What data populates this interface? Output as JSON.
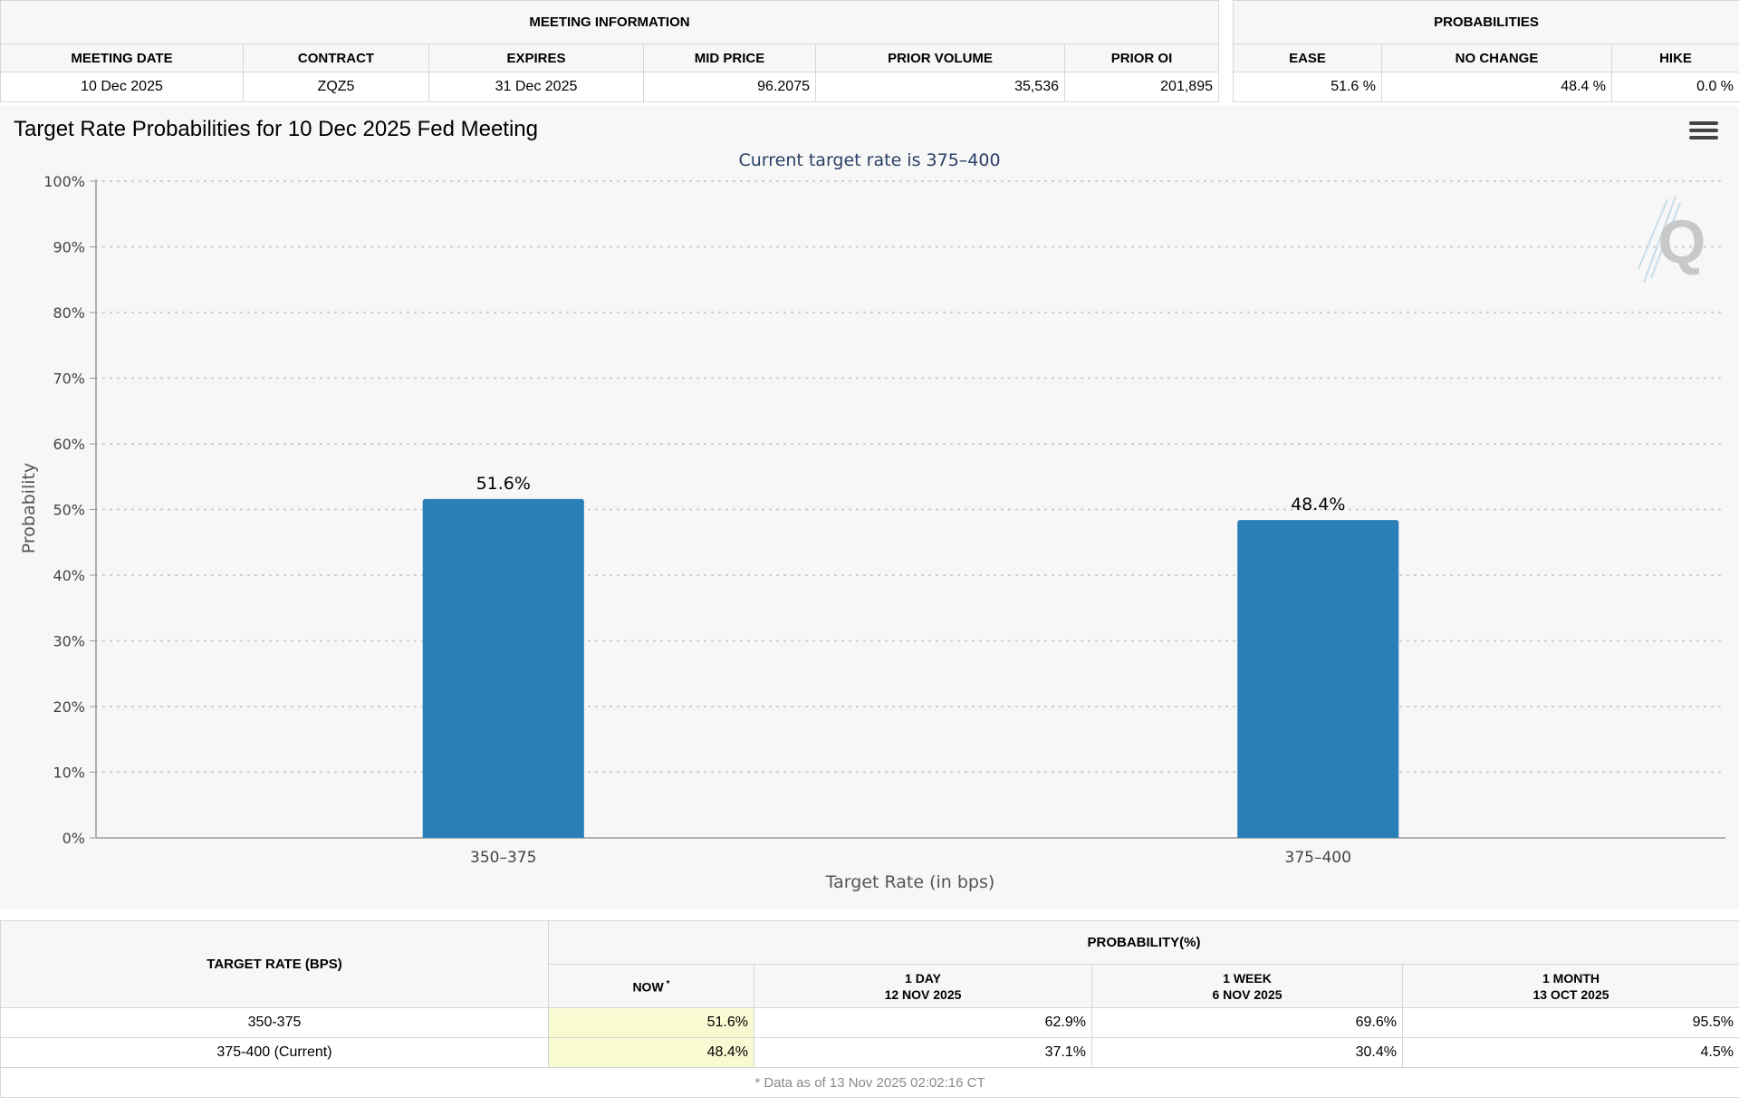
{
  "meeting_info": {
    "title": "MEETING INFORMATION",
    "headers": [
      "MEETING DATE",
      "CONTRACT",
      "EXPIRES",
      "MID PRICE",
      "PRIOR VOLUME",
      "PRIOR OI"
    ],
    "row": {
      "meeting_date": "10 Dec 2025",
      "contract": "ZQZ5",
      "expires": "31 Dec 2025",
      "mid_price": "96.2075",
      "prior_volume": "35,536",
      "prior_oi": "201,895"
    }
  },
  "probabilities": {
    "title": "PROBABILITIES",
    "headers": [
      "EASE",
      "NO CHANGE",
      "HIKE"
    ],
    "row": {
      "ease": "51.6 %",
      "no_change": "48.4 %",
      "hike": "0.0 %"
    }
  },
  "chart": {
    "title": "Target Rate Probabilities for 10 Dec 2025 Fed Meeting",
    "menu_icon": "hamburger-menu-icon",
    "watermark": "Q"
  },
  "chart_data": {
    "type": "bar",
    "title": "Target Rate Probabilities for 10 Dec 2025 Fed Meeting",
    "subtitle": "Current target rate is 375–400",
    "categories": [
      "350–375",
      "375–400"
    ],
    "values": [
      51.6,
      48.4
    ],
    "data_labels": [
      "51.6%",
      "48.4%"
    ],
    "xlabel": "Target Rate (in bps)",
    "ylabel": "Probability",
    "ylim": [
      0,
      100
    ],
    "yticks": [
      "0%",
      "10%",
      "20%",
      "30%",
      "40%",
      "50%",
      "60%",
      "70%",
      "80%",
      "90%",
      "100%"
    ],
    "grid": true,
    "bar_color": "#2a7fb8",
    "subtitle_color": "#2b3f66"
  },
  "history": {
    "target_rate_header": "TARGET RATE (BPS)",
    "probability_header": "PROBABILITY(%)",
    "columns": [
      {
        "line1": "NOW",
        "marker": "*",
        "line2": ""
      },
      {
        "line1": "1 DAY",
        "line2": "12 NOV 2025"
      },
      {
        "line1": "1 WEEK",
        "line2": "6 NOV 2025"
      },
      {
        "line1": "1 MONTH",
        "line2": "13 OCT 2025"
      }
    ],
    "rows": [
      {
        "rate": "350-375",
        "now": "51.6%",
        "day": "62.9%",
        "week": "69.6%",
        "month": "95.5%"
      },
      {
        "rate": "375-400 (Current)",
        "now": "48.4%",
        "day": "37.1%",
        "week": "30.4%",
        "month": "4.5%"
      }
    ],
    "footnote": "* Data as of 13 Nov 2025 02:02:16 CT"
  }
}
